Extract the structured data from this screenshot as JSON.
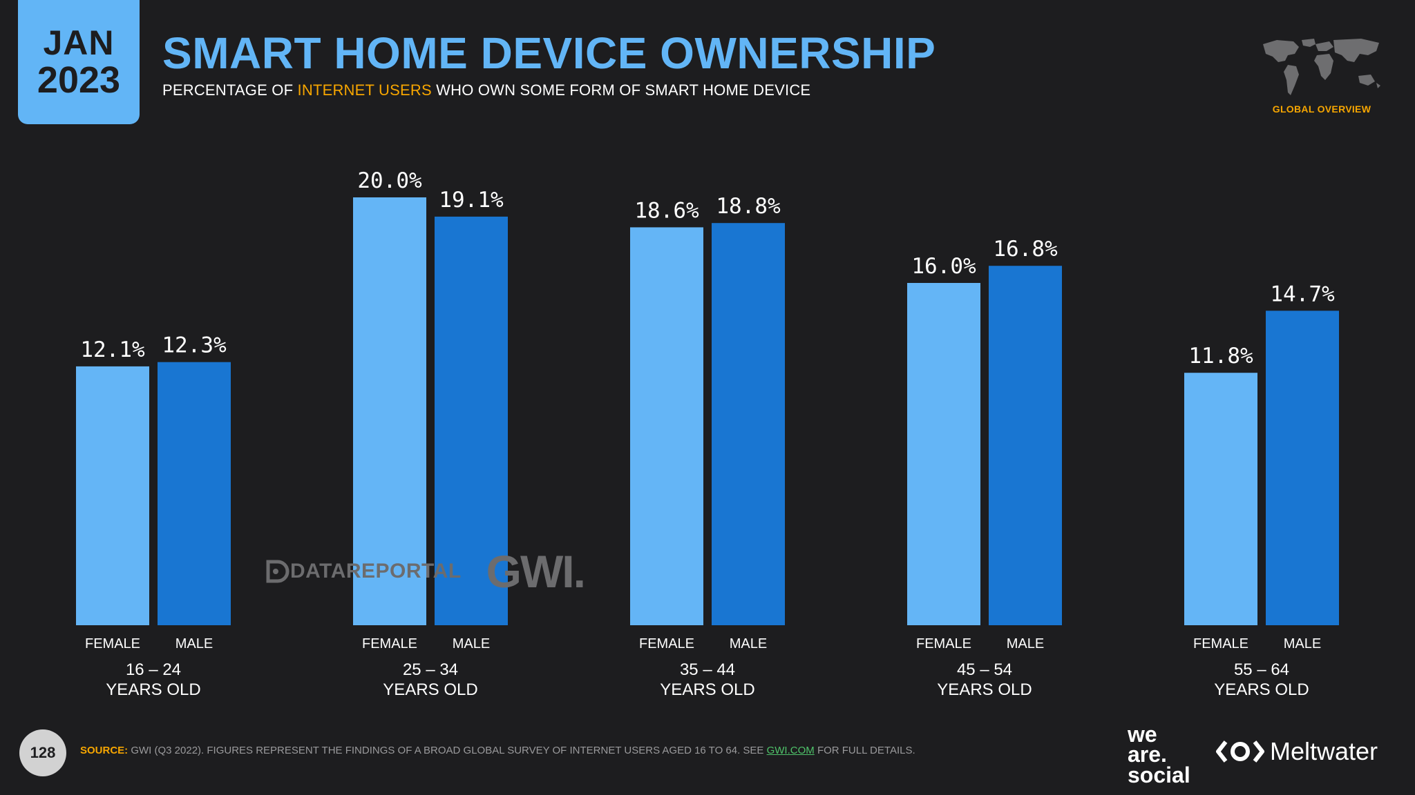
{
  "header": {
    "month": "JAN",
    "year": "2023",
    "title": "SMART HOME DEVICE OWNERSHIP",
    "subtitle_pre": "PERCENTAGE OF",
    "subtitle_highlight": "INTERNET USERS",
    "subtitle_post": "WHO OWN SOME FORM OF SMART HOME DEVICE",
    "global_overview": "GLOBAL OVERVIEW"
  },
  "watermark": {
    "datareportal": "DATAREPORTAL",
    "gwi": "GWI."
  },
  "footer": {
    "page_number": "128",
    "source_label": "SOURCE:",
    "source_text": "GWI (Q3 2022). FIGURES REPRESENT THE FINDINGS OF A BROAD GLOBAL SURVEY OF INTERNET USERS AGED 16 TO 64. SEE",
    "source_link": "GWI.COM",
    "source_end": "FOR FULL DETAILS.",
    "brand_was_1": "we",
    "brand_was_2": "are.",
    "brand_was_3": "social",
    "brand_meltwater": "Meltwater"
  },
  "colors": {
    "female": "#64b5f6",
    "male": "#1976d2",
    "accent": "#f7a600",
    "title": "#62b5f6",
    "background": "#1d1d1f"
  },
  "chart_data": {
    "type": "bar",
    "title": "SMART HOME DEVICE OWNERSHIP",
    "ylabel": "",
    "xlabel": "",
    "ylim": [
      0,
      20
    ],
    "grid": false,
    "categories": [
      "16 – 24",
      "25 – 34",
      "35 – 44",
      "45 – 54",
      "55 – 64"
    ],
    "category_sublabel": "YEARS OLD",
    "series": [
      {
        "name": "FEMALE",
        "values": [
          12.1,
          20.0,
          18.6,
          16.0,
          11.8
        ],
        "labels": [
          "12.1%",
          "20.0%",
          "18.6%",
          "16.0%",
          "11.8%"
        ]
      },
      {
        "name": "MALE",
        "values": [
          12.3,
          19.1,
          18.8,
          16.8,
          14.7
        ],
        "labels": [
          "12.3%",
          "19.1%",
          "18.8%",
          "16.8%",
          "14.7%"
        ]
      }
    ]
  }
}
